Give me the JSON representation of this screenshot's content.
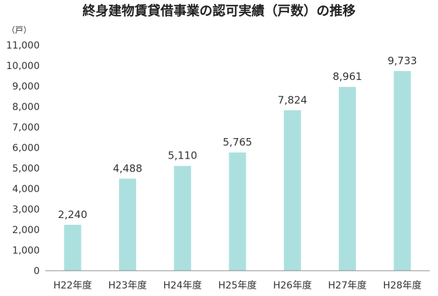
{
  "chart_data": {
    "type": "bar",
    "title": "終身建物賃貸借事業の認可実績（戸数）の推移",
    "ylabel": "（戸）",
    "xlabel": "",
    "categories": [
      "H22年度",
      "H23年度",
      "H24年度",
      "H25年度",
      "H26年度",
      "H27年度",
      "H28年度"
    ],
    "values": [
      2240,
      4488,
      5110,
      5765,
      7824,
      8961,
      9733
    ],
    "value_labels": [
      "2,240",
      "4,488",
      "5,110",
      "5,765",
      "7,824",
      "8,961",
      "9,733"
    ],
    "ylim": [
      0,
      11000
    ],
    "y_ticks": [
      0,
      1000,
      2000,
      3000,
      4000,
      5000,
      6000,
      7000,
      8000,
      9000,
      10000,
      11000
    ],
    "y_tick_labels": [
      "0",
      "1,000",
      "2,000",
      "3,000",
      "4,000",
      "5,000",
      "6,000",
      "7,000",
      "8,000",
      "9,000",
      "10,000",
      "11,000"
    ],
    "grid": false,
    "legend": "none",
    "bar_color": "#ace0df",
    "axis_color": "#888888"
  }
}
